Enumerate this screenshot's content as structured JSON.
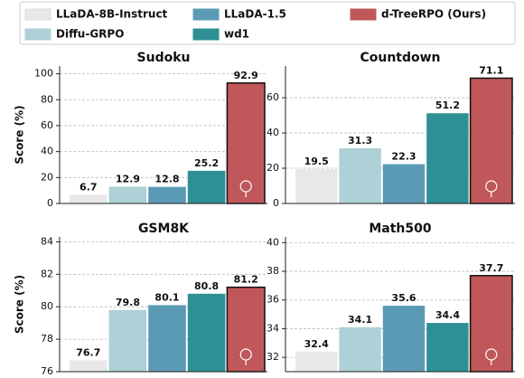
{
  "legend": {
    "entries": [
      {
        "name": "LLaDA-8B-Instruct",
        "color": "#e8e8e8"
      },
      {
        "name": "Diffu-GRPO",
        "color": "#aed0d6"
      },
      {
        "name": "LLaDA-1.5",
        "color": "#5b9ab5"
      },
      {
        "name": "wd1",
        "color": "#2e8f94"
      },
      {
        "name": "d-TreeRPO (Ours)",
        "color": "#c0575a"
      }
    ]
  },
  "chart_data": [
    {
      "type": "bar",
      "title": "Sudoku",
      "ylabel": "Score (%)",
      "values": [
        6.7,
        12.9,
        12.8,
        25.2,
        92.9
      ],
      "ylim": [
        0,
        106
      ],
      "yticks": [
        0,
        20,
        40,
        60,
        80,
        100
      ],
      "grid": true
    },
    {
      "type": "bar",
      "title": "Countdown",
      "values": [
        19.5,
        31.3,
        22.3,
        51.2,
        71.1
      ],
      "ylim": [
        0,
        78
      ],
      "yticks": [
        0,
        20,
        40,
        60
      ],
      "grid": true
    },
    {
      "type": "bar",
      "title": "GSM8K",
      "ylabel": "Score (%)",
      "values": [
        76.7,
        79.8,
        80.1,
        80.8,
        81.2
      ],
      "ylim": [
        76,
        84.3
      ],
      "yticks": [
        76,
        78,
        80,
        82,
        84
      ],
      "grid": true
    },
    {
      "type": "bar",
      "title": "Math500",
      "values": [
        32.4,
        34.1,
        35.6,
        34.4,
        37.7
      ],
      "ylim": [
        31,
        40.4
      ],
      "yticks": [
        32,
        34,
        36,
        38,
        40
      ],
      "grid": true
    }
  ]
}
